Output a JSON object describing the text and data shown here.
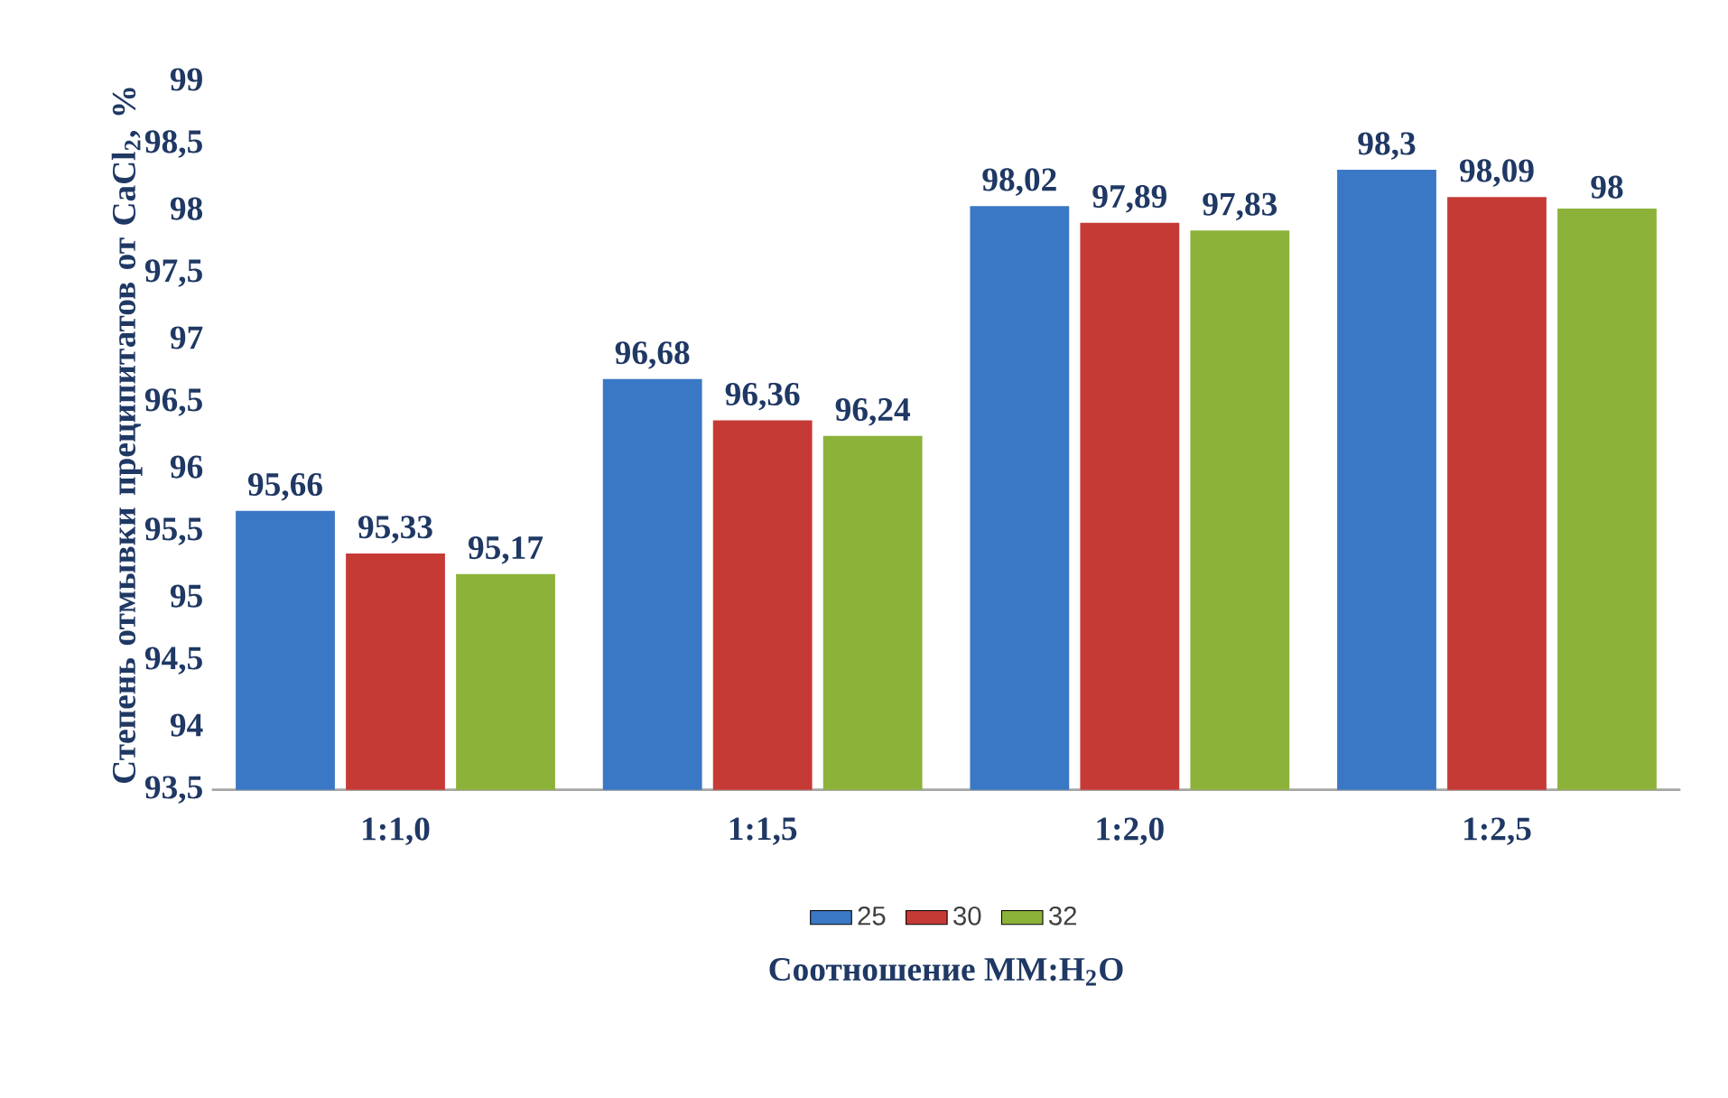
{
  "chart_data": {
    "type": "bar",
    "xlabel": "Соотношение ММ:H$_{2}$O",
    "ylabel": "Степень отмывки преципитатов от CaCl$_{2}$, %",
    "categories": [
      "1:1,0",
      "1:1,5",
      "1:2,0",
      "1:2,5"
    ],
    "series": [
      {
        "name": "25",
        "color": "#3a78c6",
        "values": [
          95.66,
          96.68,
          98.02,
          98.3
        ],
        "value_labels": [
          "95,66",
          "96,68",
          "98,02",
          "98,3"
        ]
      },
      {
        "name": "30",
        "color": "#c63a36",
        "values": [
          95.33,
          96.36,
          97.89,
          98.09
        ],
        "value_labels": [
          "95,33",
          "96,36",
          "97,89",
          "98,09"
        ]
      },
      {
        "name": "32",
        "color": "#8cb23a",
        "values": [
          95.17,
          96.24,
          97.83,
          98
        ],
        "value_labels": [
          "95,17",
          "96,24",
          "97,83",
          "98"
        ]
      }
    ],
    "ylim": [
      93.5,
      99
    ],
    "yticks": [
      {
        "value": 93.5,
        "label": "93,5"
      },
      94,
      {
        "value": 94.5,
        "label": "94,5"
      },
      95,
      {
        "value": 95.5,
        "label": "95,5"
      },
      96,
      {
        "value": 96.5,
        "label": "96,5"
      },
      97,
      {
        "value": 97.5,
        "label": "97,5"
      },
      98,
      {
        "value": 98.5,
        "label": "98,5"
      },
      99
    ],
    "legend": "bottom",
    "grid": false
  }
}
